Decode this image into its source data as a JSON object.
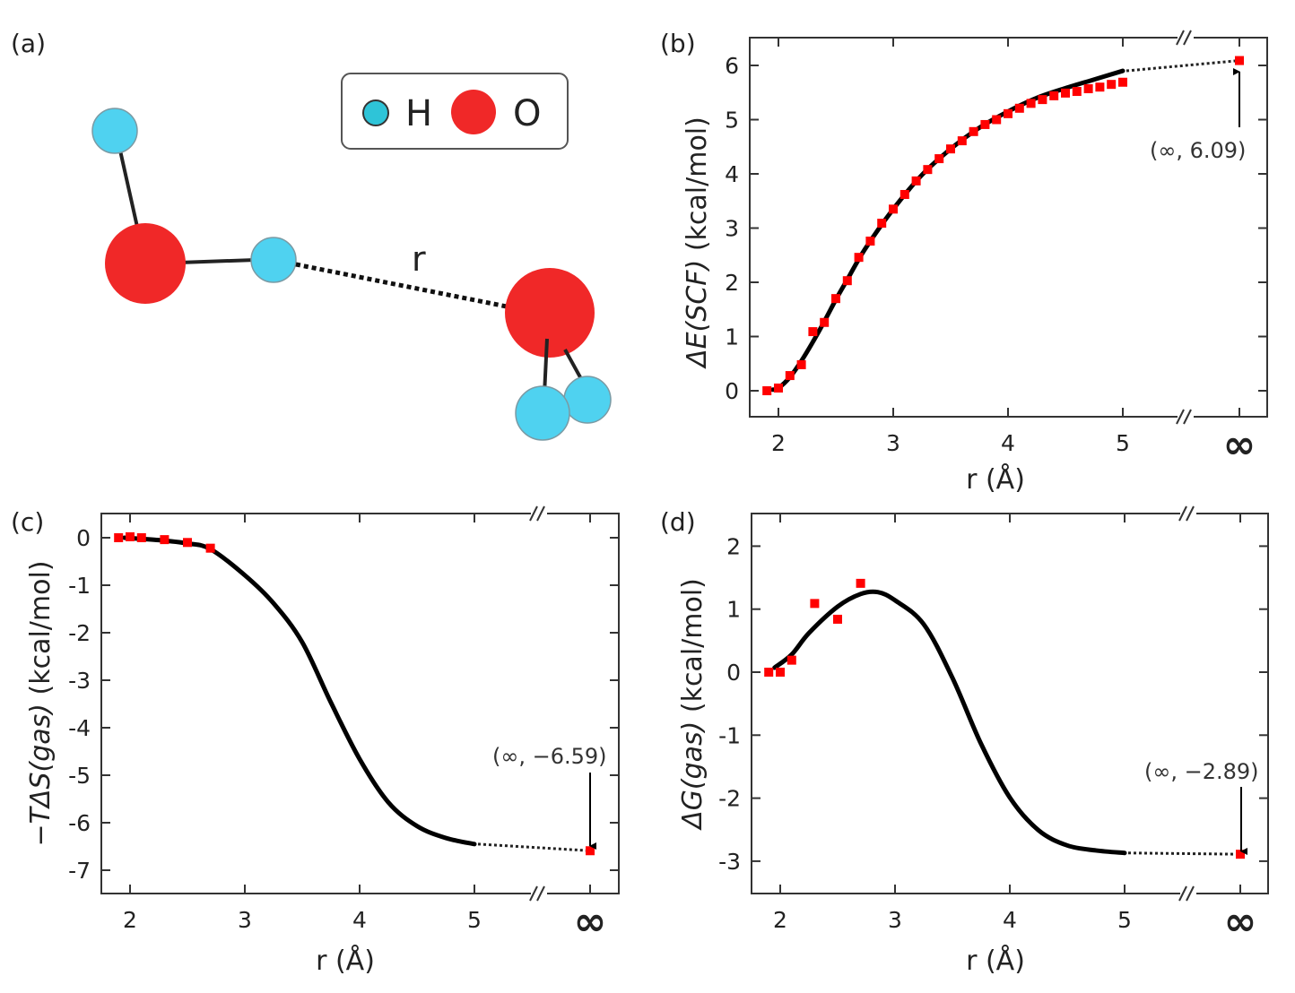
{
  "panel_a": {
    "label": "(a)",
    "legend": {
      "h_label": "H",
      "o_label": "O"
    },
    "distance_label": "r",
    "colors": {
      "hydrogen": "#4fd2f0",
      "oxygen": "#f02828"
    }
  },
  "colors": {
    "marker": "#ff0000",
    "curve": "#000000",
    "frame": "#333333"
  },
  "chart_data": [
    {
      "panel": "(b)",
      "type": "scatter",
      "xlabel": "r (Å)",
      "ylabel_italic": "ΔE(SCF)",
      "ylabel_unit": " (kcal/mol)",
      "xticks": [
        2,
        3,
        4,
        5
      ],
      "xtick_labels": [
        "2",
        "3",
        "4",
        "5"
      ],
      "x_infinity_label": "∞",
      "yticks": [
        0,
        1,
        2,
        3,
        4,
        5,
        6
      ],
      "ytick_labels": [
        "0",
        "1",
        "2",
        "3",
        "4",
        "5",
        "6"
      ],
      "ylim": [
        -0.45,
        6.5
      ],
      "axis_break": true,
      "markers": {
        "x": [
          1.9,
          2.0,
          2.1,
          2.2,
          2.3,
          2.4,
          2.5,
          2.6,
          2.7,
          2.8,
          2.9,
          3.0,
          3.1,
          3.2,
          3.3,
          3.4,
          3.5,
          3.6,
          3.7,
          3.8,
          3.9,
          4.0,
          4.1,
          4.2,
          4.3,
          4.4,
          4.5,
          4.6,
          4.7,
          4.8,
          4.9,
          5.0
        ],
        "y": [
          0.0,
          0.05,
          0.28,
          0.48,
          1.09,
          1.26,
          1.7,
          2.03,
          2.46,
          2.76,
          3.09,
          3.35,
          3.62,
          3.87,
          4.08,
          4.28,
          4.46,
          4.61,
          4.78,
          4.91,
          5.0,
          5.11,
          5.21,
          5.3,
          5.37,
          5.44,
          5.49,
          5.52,
          5.57,
          5.6,
          5.65,
          5.69
        ]
      },
      "curve": {
        "x": [
          1.95,
          2.0,
          2.1,
          2.2,
          2.3,
          2.4,
          2.5,
          2.6,
          2.75,
          3.0,
          3.25,
          3.5,
          3.75,
          4.0,
          4.25,
          4.5,
          4.75,
          5.0
        ],
        "y": [
          0.02,
          0.05,
          0.25,
          0.55,
          0.9,
          1.28,
          1.68,
          2.05,
          2.6,
          3.35,
          3.98,
          4.46,
          4.85,
          5.15,
          5.4,
          5.58,
          5.74,
          5.9
        ]
      },
      "infinity_value": 6.09,
      "annotation": "(∞, 6.09)"
    },
    {
      "panel": "(c)",
      "type": "scatter",
      "xlabel": "r (Å)",
      "ylabel_italic": "−TΔS(gas)",
      "ylabel_unit": " (kcal/mol)",
      "xticks": [
        2,
        3,
        4,
        5
      ],
      "xtick_labels": [
        "2",
        "3",
        "4",
        "5"
      ],
      "x_infinity_label": "∞",
      "yticks": [
        0,
        -1,
        -2,
        -3,
        -4,
        -5,
        -6,
        -7
      ],
      "ytick_labels": [
        "0",
        "-1",
        "-2",
        "-3",
        "-4",
        "-5",
        "-6",
        "-7"
      ],
      "ylim": [
        -7.5,
        0.5
      ],
      "axis_break": true,
      "markers": {
        "x": [
          1.9,
          2.0,
          2.1,
          2.3,
          2.5,
          2.7
        ],
        "y": [
          0.0,
          0.02,
          0.0,
          -0.04,
          -0.1,
          -0.22
        ]
      },
      "curve": {
        "x": [
          1.95,
          2.25,
          2.5,
          2.7,
          3.0,
          3.25,
          3.5,
          3.75,
          4.0,
          4.25,
          4.5,
          4.75,
          5.0
        ],
        "y": [
          0.0,
          -0.05,
          -0.12,
          -0.24,
          -0.79,
          -1.38,
          -2.2,
          -3.47,
          -4.66,
          -5.57,
          -6.07,
          -6.32,
          -6.45
        ]
      },
      "infinity_value": -6.59,
      "annotation": "(∞, −6.59)"
    },
    {
      "panel": "(d)",
      "type": "scatter",
      "xlabel": "r (Å)",
      "ylabel_italic": "ΔG(gas)",
      "ylabel_unit": " (kcal/mol)",
      "xticks": [
        2,
        3,
        4,
        5
      ],
      "xtick_labels": [
        "2",
        "3",
        "4",
        "5"
      ],
      "x_infinity_label": "∞",
      "yticks": [
        2,
        1,
        0,
        -1,
        -2,
        -3
      ],
      "ytick_labels": [
        "2",
        "1",
        "0",
        "-1",
        "-2",
        "-3"
      ],
      "ylim": [
        -3.5,
        2.5
      ],
      "axis_break": true,
      "markers": {
        "x": [
          1.9,
          2.0,
          2.1,
          2.3,
          2.5,
          2.7
        ],
        "y": [
          0.0,
          0.0,
          0.19,
          1.09,
          0.84,
          1.41
        ]
      },
      "curve": {
        "x": [
          1.95,
          2.1,
          2.25,
          2.5,
          2.7,
          2.85,
          3.0,
          3.25,
          3.5,
          3.75,
          4.0,
          4.25,
          4.5,
          4.75,
          5.0
        ],
        "y": [
          0.07,
          0.28,
          0.62,
          1.04,
          1.24,
          1.27,
          1.14,
          0.76,
          -0.09,
          -1.14,
          -1.99,
          -2.51,
          -2.75,
          -2.83,
          -2.87
        ]
      },
      "infinity_value": -2.89,
      "annotation": "(∞, −2.89)"
    }
  ]
}
